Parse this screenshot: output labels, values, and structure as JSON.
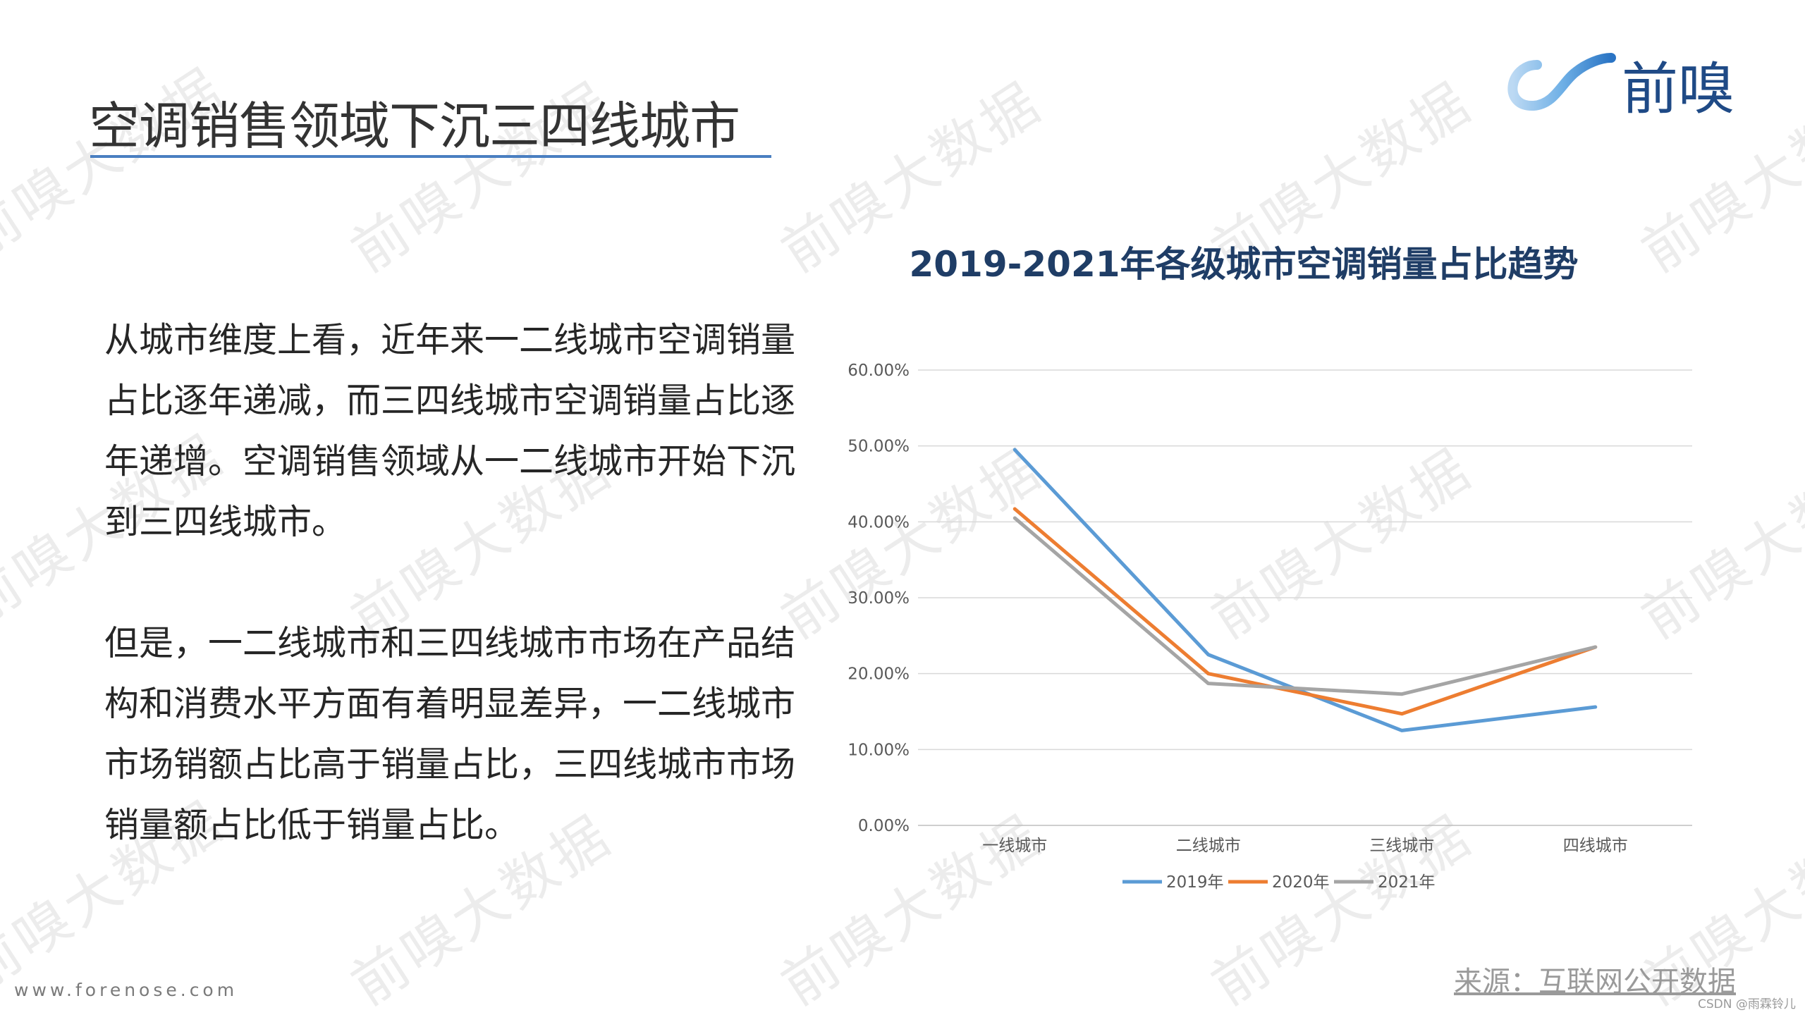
{
  "title": "空调销售领域下沉三四线城市",
  "logo": {
    "text": "前嗅",
    "icon": "wave-logo-icon",
    "colors": [
      "#5aa3e0",
      "#1f4a86"
    ]
  },
  "watermark_text": "前嗅大数据",
  "paragraphs": [
    "从城市维度上看，近年来一二线城市空调销量占比逐年递减，而三四线城市空调销量占比逐年递增。空调销售领域从一二线城市开始下沉到三四线城市。",
    "但是，一二线城市和三四线城市市场在产品结构和消费水平方面有着明显差异，一二线城市市场销额占比高于销量占比，三四线城市市场销量额占比低于销量占比。"
  ],
  "website": "www.forenose.com",
  "source": "来源：互联网公开数据",
  "credit": "CSDN @雨霖铃儿",
  "colors": {
    "accent": "#4a7fc1",
    "title_text": "#1f3d66"
  },
  "chart_data": {
    "type": "line",
    "title": "2019-2021年各级城市空调销量占比趋势",
    "categories": [
      "一线城市",
      "二线城市",
      "三线城市",
      "四线城市"
    ],
    "series": [
      {
        "name": "2019年",
        "color": "#5b9bd5",
        "values": [
          49.5,
          22.5,
          12.5,
          15.6
        ]
      },
      {
        "name": "2020年",
        "color": "#ed7d31",
        "values": [
          41.7,
          20.0,
          14.7,
          23.5
        ]
      },
      {
        "name": "2021年",
        "color": "#a5a5a5",
        "values": [
          40.5,
          18.7,
          17.3,
          23.5
        ]
      }
    ],
    "yticks": [
      "0.00%",
      "10.00%",
      "20.00%",
      "30.00%",
      "40.00%",
      "50.00%",
      "60.00%"
    ],
    "ylim": [
      0,
      60
    ],
    "grid": true,
    "legend_position": "bottom"
  }
}
